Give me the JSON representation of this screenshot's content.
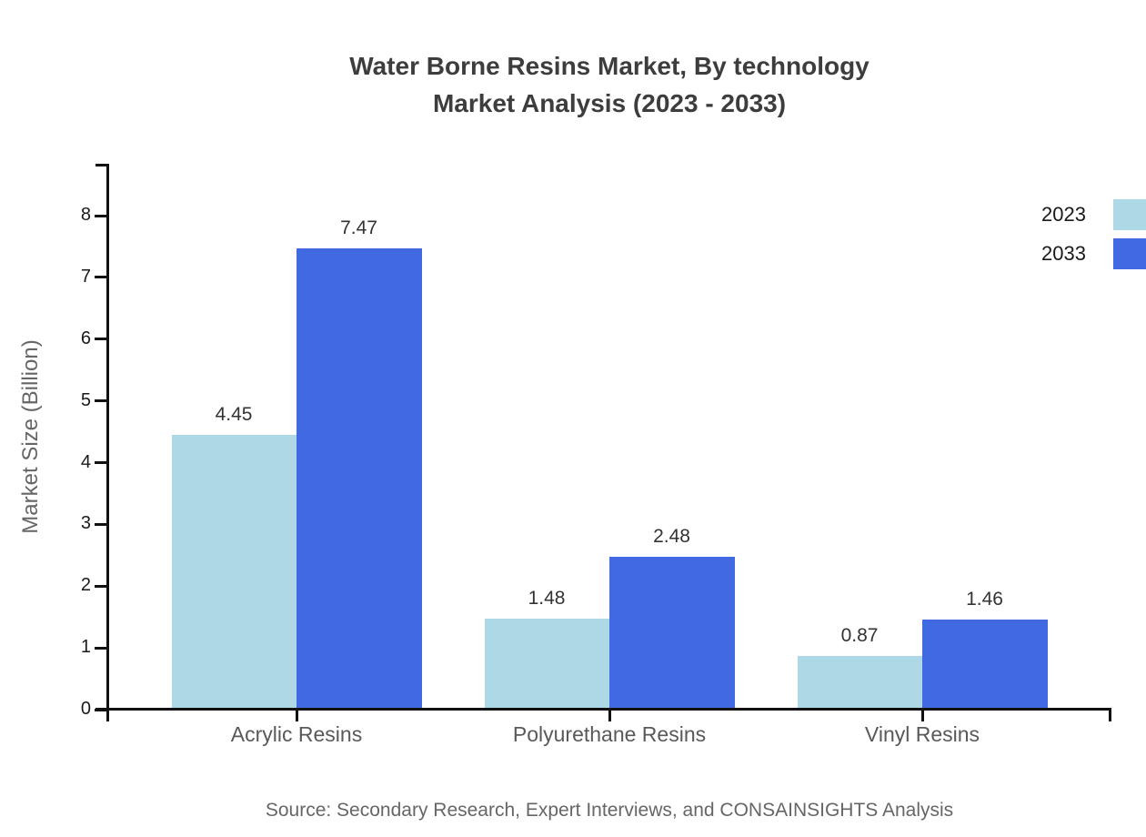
{
  "title": {
    "line1": "Water Borne Resins Market, By technology",
    "line2": "Market Analysis (2023 - 2033)"
  },
  "source": "Source: Secondary Research, Expert Interviews, and CONSAINSIGHTS Analysis",
  "colors": {
    "series_2023": "#ADD8E6",
    "series_2033": "#4169E1",
    "axis": "#111111",
    "title_text": "#3d3d3d",
    "muted_text": "#666666"
  },
  "chart_data": {
    "type": "bar",
    "categories": [
      "Acrylic Resins",
      "Polyurethane Resins",
      "Vinyl Resins"
    ],
    "series": [
      {
        "name": "2023",
        "color": "#ADD8E6",
        "values": [
          4.45,
          1.48,
          0.87
        ]
      },
      {
        "name": "2033",
        "color": "#4169E1",
        "values": [
          7.47,
          2.48,
          1.46
        ]
      }
    ],
    "title": "Water Borne Resins Market, By technology Market Analysis (2023 - 2033)",
    "xlabel": "",
    "ylabel": "Market Size (Billion)",
    "ylim": [
      0,
      8
    ],
    "ytick_step": 1,
    "value_labels": true,
    "legend_position": "top-right",
    "grid": false
  }
}
